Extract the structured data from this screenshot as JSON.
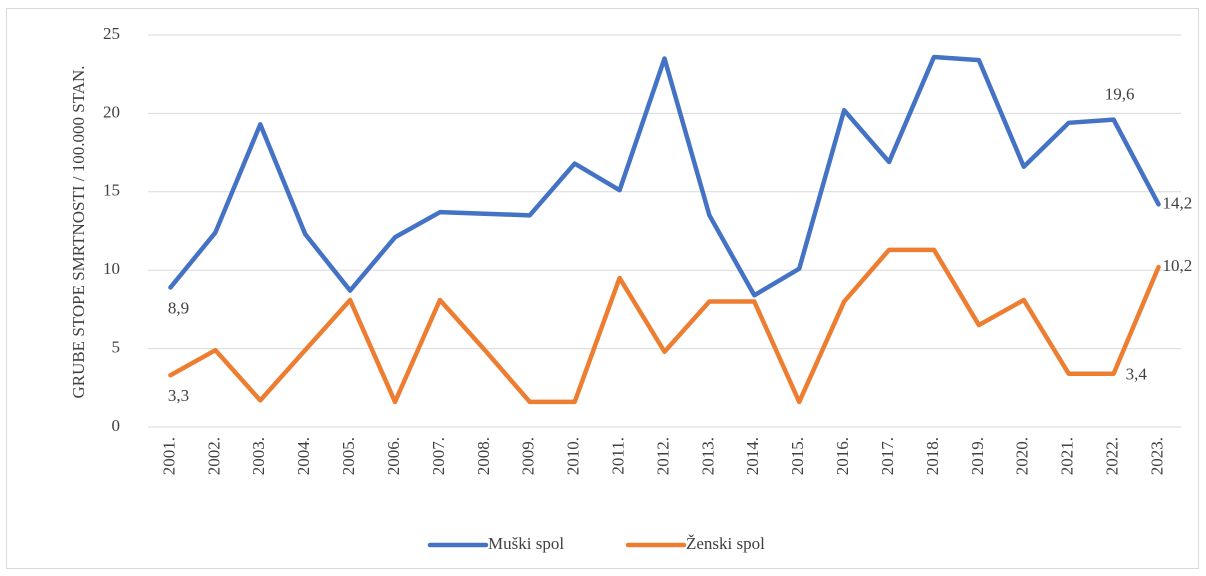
{
  "chart_data": {
    "type": "line",
    "y_label": "GRUBE STOPE SMRTNOSTI / 100.000 STAN.",
    "categories": [
      "2001.",
      "2002.",
      "2003.",
      "2004.",
      "2005.",
      "2006.",
      "2007.",
      "2008.",
      "2009.",
      "2010.",
      "2011.",
      "2012.",
      "2013.",
      "2014.",
      "2015.",
      "2016.",
      "2017.",
      "2018.",
      "2019.",
      "2020.",
      "2021.",
      "2022.",
      "2023."
    ],
    "series": [
      {
        "name": "Muški spol",
        "color": "#4472c4",
        "values": [
          8.9,
          12.4,
          19.3,
          12.3,
          8.7,
          12.1,
          13.7,
          13.6,
          13.5,
          16.8,
          15.1,
          23.5,
          13.5,
          8.4,
          10.1,
          20.2,
          16.9,
          23.6,
          23.4,
          16.6,
          19.4,
          19.6,
          14.2
        ],
        "value_labels": [
          "8,9",
          null,
          null,
          null,
          null,
          null,
          null,
          null,
          null,
          null,
          null,
          null,
          null,
          null,
          null,
          null,
          null,
          null,
          null,
          null,
          null,
          "19,6",
          "14,2"
        ]
      },
      {
        "name": "Ženski spol",
        "color": "#ed7d31",
        "values": [
          3.3,
          4.9,
          1.7,
          4.9,
          8.1,
          1.6,
          8.1,
          4.9,
          1.6,
          1.6,
          9.5,
          4.8,
          8.0,
          8.0,
          1.6,
          8.0,
          11.3,
          11.3,
          6.5,
          8.1,
          3.4,
          3.4,
          10.2
        ],
        "value_labels": [
          "3,3",
          null,
          null,
          null,
          null,
          null,
          null,
          null,
          null,
          null,
          null,
          null,
          null,
          null,
          null,
          null,
          null,
          null,
          null,
          null,
          null,
          "3,4",
          "10,2"
        ]
      }
    ],
    "ylim": [
      0,
      25
    ],
    "yticks": [
      0,
      5,
      10,
      15,
      20,
      25
    ],
    "grid": true,
    "legend": "bottom"
  }
}
